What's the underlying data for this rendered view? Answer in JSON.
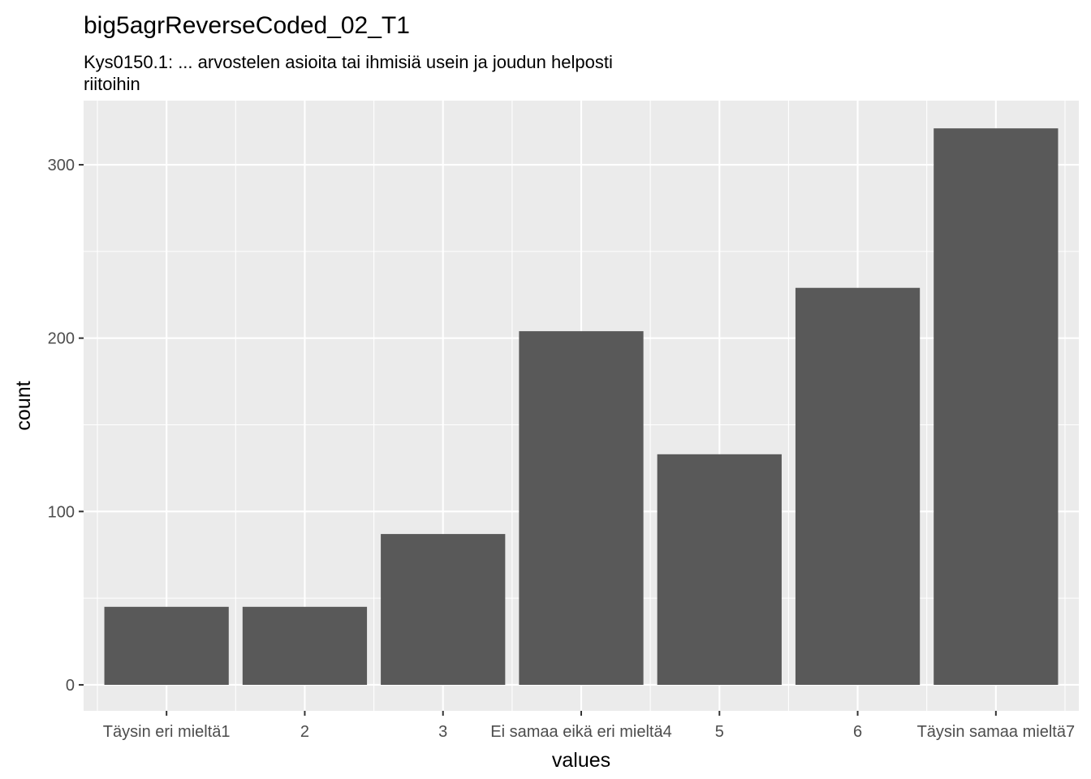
{
  "chart_data": {
    "type": "bar",
    "title": "big5agrReverseCoded_02_T1",
    "subtitle_lines": [
      "Kys0150.1: ... arvostelen asioita tai ihmisiä usein ja joudun helposti",
      "riitoihin"
    ],
    "xlabel": "values",
    "ylabel": "count",
    "categories": [
      "Täysin eri mieltä1",
      "2",
      "3",
      "Ei samaa eikä eri mieltä4",
      "5",
      "6",
      "Täysin samaa mieltä7"
    ],
    "values": [
      45,
      45,
      87,
      204,
      133,
      229,
      321
    ],
    "ylim": [
      -15,
      337
    ],
    "yticks": [
      0,
      100,
      200,
      300
    ],
    "grid": true,
    "legend": "none",
    "colors": {
      "panel_bg": "#ebebeb",
      "grid": "#ffffff",
      "bar": "#595959",
      "tick_text": "#4d4d4d",
      "tick_line": "#333333"
    }
  }
}
